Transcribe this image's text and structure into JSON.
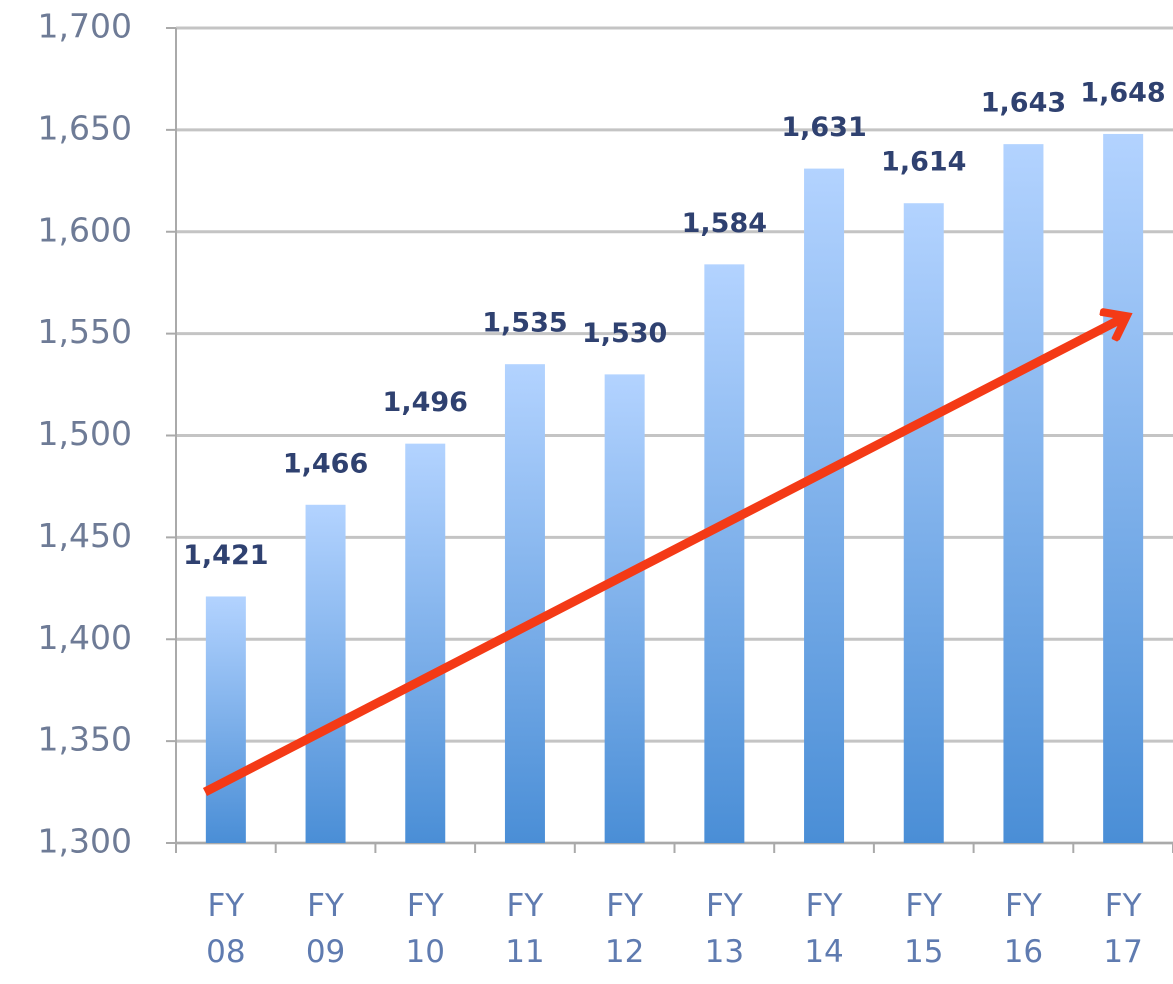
{
  "chart_data": {
    "type": "bar",
    "categories": [
      "FY 08",
      "FY 09",
      "FY 10",
      "FY 11",
      "FY 12",
      "FY 13",
      "FY 14",
      "FY 15",
      "FY 16",
      "FY 17"
    ],
    "values": [
      1421,
      1466,
      1496,
      1535,
      1530,
      1584,
      1631,
      1614,
      1643,
      1648
    ],
    "value_labels": [
      "1,421",
      "1,466",
      "1,496",
      "1,535",
      "1,530",
      "1,584",
      "1,631",
      "1,614",
      "1,643",
      "1,648"
    ],
    "ylim": [
      1300,
      1700
    ],
    "yticks": [
      {
        "value": 1300,
        "label": "1,300"
      },
      {
        "value": 1350,
        "label": "1,350"
      },
      {
        "value": 1400,
        "label": "1,400"
      },
      {
        "value": 1450,
        "label": "1,450"
      },
      {
        "value": 1500,
        "label": "1,500"
      },
      {
        "value": 1550,
        "label": "1,550"
      },
      {
        "value": 1600,
        "label": "1,600"
      },
      {
        "value": 1650,
        "label": "1,650"
      },
      {
        "value": 1700,
        "label": "1,700"
      }
    ],
    "grid": true
  }
}
